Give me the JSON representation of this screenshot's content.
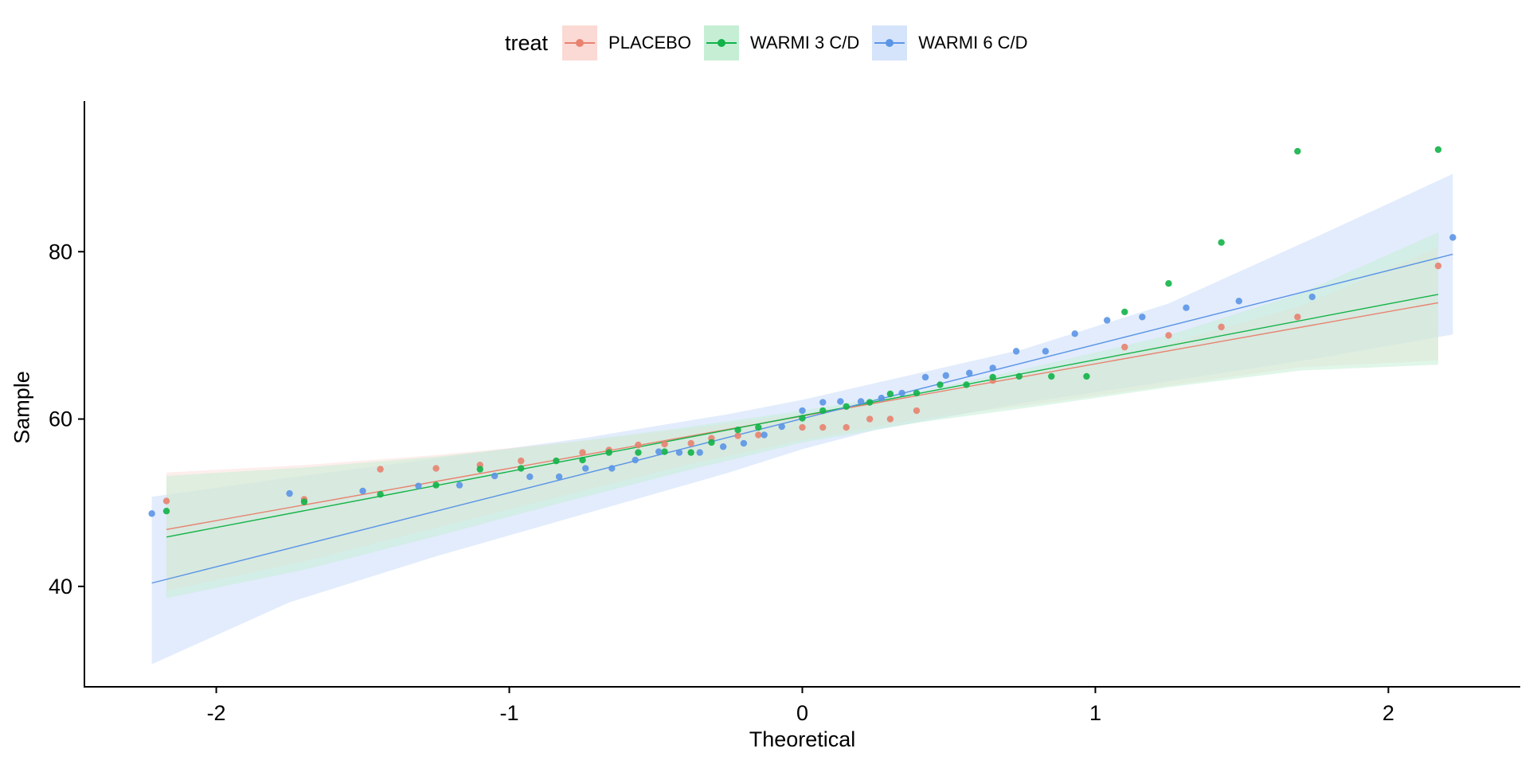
{
  "legend": {
    "title": "treat",
    "items": [
      {
        "label": "PLACEBO",
        "color": "#e8826f",
        "fill": "#fbd9d4"
      },
      {
        "label": "WARMI 3 C/D",
        "color": "#12b348",
        "fill": "#c6eed5"
      },
      {
        "label": "WARMI 6 C/D",
        "color": "#5b95e6",
        "fill": "#d6e4fb"
      }
    ]
  },
  "chart_data": {
    "type": "scatter",
    "title": "",
    "xlabel": "Theoretical",
    "ylabel": "Sample",
    "xlim": [
      -2.45,
      2.45
    ],
    "ylim": [
      28,
      98
    ],
    "xticks": [
      -2,
      -1,
      0,
      1,
      2
    ],
    "yticks": [
      40,
      60,
      80
    ],
    "grid": false,
    "legend_position": "top",
    "series": [
      {
        "name": "PLACEBO",
        "color": "#e8826f",
        "fill": "#fbd9d4",
        "fill_opacity": 0.45,
        "points": [
          [
            -2.17,
            50.2
          ],
          [
            -1.7,
            50.4
          ],
          [
            -1.44,
            54.0
          ],
          [
            -1.25,
            54.1
          ],
          [
            -1.1,
            54.5
          ],
          [
            -0.96,
            55.0
          ],
          [
            -0.75,
            56.0
          ],
          [
            -0.66,
            56.3
          ],
          [
            -0.56,
            56.9
          ],
          [
            -0.47,
            57.0
          ],
          [
            -0.38,
            57.1
          ],
          [
            -0.31,
            57.7
          ],
          [
            -0.22,
            58.0
          ],
          [
            -0.15,
            58.1
          ],
          [
            0.0,
            59.0
          ],
          [
            0.07,
            59.0
          ],
          [
            0.15,
            59.0
          ],
          [
            0.23,
            60.0
          ],
          [
            0.3,
            60.0
          ],
          [
            0.39,
            61.0
          ],
          [
            0.65,
            64.6
          ],
          [
            1.1,
            68.6
          ],
          [
            1.25,
            70.0
          ],
          [
            1.43,
            71.0
          ],
          [
            1.69,
            72.2
          ],
          [
            2.17,
            78.3
          ]
        ],
        "fit": {
          "x": [
            -2.17,
            2.17
          ],
          "y": [
            46.8,
            73.9
          ]
        },
        "band": {
          "x": [
            -2.17,
            -1.7,
            -1.25,
            -0.8,
            -0.4,
            0.0,
            0.4,
            0.8,
            1.25,
            1.7,
            2.17
          ],
          "lower": [
            39.5,
            43.0,
            47.0,
            51.0,
            54.5,
            57.5,
            60.0,
            61.8,
            64.0,
            66.2,
            67.0
          ],
          "upper": [
            53.6,
            54.5,
            55.7,
            57.2,
            58.8,
            60.6,
            62.8,
            65.7,
            69.0,
            73.5,
            80.5
          ]
        }
      },
      {
        "name": "WARMI 3 C/D",
        "color": "#12b348",
        "fill": "#c6eed5",
        "fill_opacity": 0.55,
        "points": [
          [
            -2.17,
            49.0
          ],
          [
            -1.7,
            50.1
          ],
          [
            -1.44,
            51.0
          ],
          [
            -1.25,
            52.1
          ],
          [
            -1.1,
            54.0
          ],
          [
            -0.96,
            54.1
          ],
          [
            -0.84,
            55.0
          ],
          [
            -0.75,
            55.1
          ],
          [
            -0.66,
            56.0
          ],
          [
            -0.56,
            56.0
          ],
          [
            -0.47,
            56.1
          ],
          [
            -0.38,
            56.0
          ],
          [
            -0.31,
            57.2
          ],
          [
            -0.22,
            58.7
          ],
          [
            -0.15,
            59.0
          ],
          [
            0.0,
            60.1
          ],
          [
            0.07,
            61.0
          ],
          [
            0.15,
            61.5
          ],
          [
            0.23,
            62.0
          ],
          [
            0.3,
            63.0
          ],
          [
            0.39,
            63.1
          ],
          [
            0.47,
            64.1
          ],
          [
            0.56,
            64.1
          ],
          [
            0.65,
            65.0
          ],
          [
            0.74,
            65.1
          ],
          [
            0.85,
            65.1
          ],
          [
            0.97,
            65.1
          ],
          [
            1.1,
            72.8
          ],
          [
            1.25,
            76.2
          ],
          [
            1.43,
            81.1
          ],
          [
            1.69,
            92.0
          ],
          [
            2.17,
            92.2
          ]
        ],
        "fit": {
          "x": [
            -2.17,
            2.17
          ],
          "y": [
            45.9,
            74.9
          ]
        },
        "band": {
          "x": [
            -2.17,
            -1.7,
            -1.25,
            -0.8,
            -0.4,
            0.0,
            0.4,
            0.8,
            1.25,
            1.7,
            2.17
          ],
          "lower": [
            38.6,
            42.0,
            46.0,
            50.2,
            53.8,
            57.2,
            59.6,
            61.5,
            63.8,
            65.8,
            66.5
          ],
          "upper": [
            53.2,
            54.2,
            55.5,
            57.2,
            59.0,
            61.0,
            63.3,
            66.3,
            70.0,
            75.0,
            82.3
          ]
        }
      },
      {
        "name": "WARMI 6 C/D",
        "color": "#5b95e6",
        "fill": "#d6e4fb",
        "fill_opacity": 0.7,
        "points": [
          [
            -2.22,
            48.7
          ],
          [
            -1.75,
            51.1
          ],
          [
            -1.5,
            51.4
          ],
          [
            -1.31,
            52.0
          ],
          [
            -1.17,
            52.1
          ],
          [
            -1.05,
            53.2
          ],
          [
            -0.93,
            53.1
          ],
          [
            -0.83,
            53.1
          ],
          [
            -0.74,
            54.1
          ],
          [
            -0.65,
            54.1
          ],
          [
            -0.57,
            55.1
          ],
          [
            -0.49,
            56.1
          ],
          [
            -0.42,
            56.0
          ],
          [
            -0.35,
            56.0
          ],
          [
            -0.27,
            56.7
          ],
          [
            -0.2,
            57.1
          ],
          [
            -0.13,
            58.1
          ],
          [
            -0.07,
            59.1
          ],
          [
            0.0,
            61.0
          ],
          [
            0.07,
            62.0
          ],
          [
            0.13,
            62.1
          ],
          [
            0.2,
            62.1
          ],
          [
            0.27,
            62.5
          ],
          [
            0.34,
            63.1
          ],
          [
            0.42,
            65.0
          ],
          [
            0.49,
            65.2
          ],
          [
            0.57,
            65.5
          ],
          [
            0.65,
            66.1
          ],
          [
            0.73,
            68.1
          ],
          [
            0.83,
            68.1
          ],
          [
            0.93,
            70.2
          ],
          [
            1.04,
            71.8
          ],
          [
            1.16,
            72.2
          ],
          [
            1.31,
            73.3
          ],
          [
            1.49,
            74.1
          ],
          [
            1.74,
            74.6
          ],
          [
            2.22,
            81.7
          ]
        ],
        "fit": {
          "x": [
            -2.22,
            2.22
          ],
          "y": [
            40.4,
            79.7
          ]
        },
        "band": {
          "x": [
            -2.22,
            -1.75,
            -1.25,
            -0.75,
            -0.25,
            0.0,
            0.25,
            0.75,
            1.25,
            1.75,
            2.22
          ],
          "lower": [
            30.7,
            38.1,
            43.6,
            48.6,
            53.6,
            56.4,
            58.7,
            61.9,
            64.5,
            67.2,
            70.1
          ],
          "upper": [
            50.7,
            53.0,
            55.3,
            57.7,
            60.6,
            62.3,
            64.3,
            68.3,
            73.8,
            81.7,
            89.3
          ]
        }
      }
    ]
  }
}
